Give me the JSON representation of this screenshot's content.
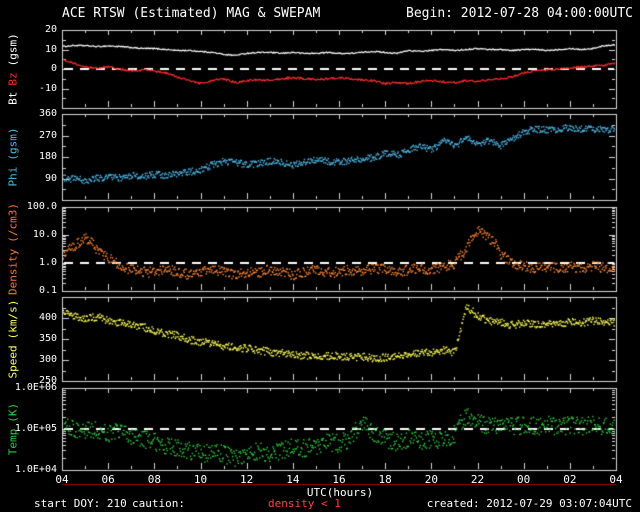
{
  "header": {
    "title": "ACE RTSW (Estimated) MAG & SWEPAM",
    "begin": "Begin: 2012-07-28 04:00:00UTC"
  },
  "footer": {
    "start_doy": "start DOY: 210",
    "caution_label": "caution:",
    "caution_value": "density < 1",
    "created": "created: 2012-07-29 03:07:04UTC"
  },
  "x_axis": {
    "label": "UTC(hours)",
    "ticks": [
      "04",
      "06",
      "08",
      "10",
      "12",
      "14",
      "16",
      "18",
      "20",
      "22",
      "00",
      "02",
      "04"
    ],
    "hours_span": 24
  },
  "colors": {
    "background": "#000000",
    "axis": "#d9d9d9",
    "bt": "#ffffff",
    "bz": "#ff2b2b",
    "phi": "#4db8e8",
    "density": "#ff8833",
    "speed": "#ffff55",
    "temp": "#2ecc40",
    "caution": "#ff4040"
  },
  "chart_data": [
    {
      "name": "mag-bt-bz",
      "type": "line",
      "scale": "linear",
      "yrange": [
        -20,
        20
      ],
      "minor_step": 5,
      "dashed_at": 0,
      "yticks": [
        {
          "v": 20,
          "label": "20"
        },
        {
          "v": 10,
          "label": "10"
        },
        {
          "v": 0,
          "label": "0"
        },
        {
          "v": -10,
          "label": "-10"
        }
      ],
      "label_parts": [
        {
          "text": "Bt",
          "color": "#ffffff"
        },
        {
          "text": "Bz",
          "color": "#ff2b2b"
        },
        {
          "text": "(gsm)",
          "color": "#ffffff"
        }
      ],
      "series": [
        {
          "name": "Bt",
          "color": "#ffffff",
          "style": "line",
          "noise": 0.3,
          "x_step": 0.5,
          "values": [
            11.5,
            12,
            12,
            11.5,
            11.8,
            11.5,
            11,
            10.5,
            10.5,
            10,
            9.5,
            9.5,
            9,
            8.5,
            7.5,
            7,
            8,
            8.5,
            8.5,
            8,
            8.5,
            8,
            8,
            8.5,
            8,
            8,
            8.5,
            9,
            8.5,
            8,
            9.5,
            9,
            9.5,
            10,
            9.5,
            10,
            10.5,
            10,
            10,
            9.5,
            10,
            10,
            9.5,
            10,
            10.5,
            10,
            10.5,
            12,
            12.5
          ]
        },
        {
          "name": "Bz",
          "color": "#ff2b2b",
          "style": "line",
          "noise": 0.5,
          "x_step": 0.5,
          "values": [
            5,
            3,
            1,
            0.5,
            1,
            0,
            -1,
            -0.5,
            -1,
            -2,
            -4,
            -6,
            -7.5,
            -6,
            -5,
            -7,
            -6,
            -5.5,
            -6,
            -5,
            -4.5,
            -5,
            -5.5,
            -5,
            -4.5,
            -5,
            -5.5,
            -6,
            -7.5,
            -7,
            -7.5,
            -6.5,
            -6,
            -6.5,
            -7,
            -6,
            -6.5,
            -5.5,
            -5,
            -4,
            -2,
            -1,
            -0.5,
            0,
            0.5,
            1,
            1.5,
            2,
            3
          ]
        }
      ]
    },
    {
      "name": "phi",
      "type": "scatter",
      "scale": "linear",
      "yrange": [
        0,
        360
      ],
      "minor_step": 45,
      "dashed_at": null,
      "yticks": [
        {
          "v": 360,
          "label": "360"
        },
        {
          "v": 270,
          "label": "270"
        },
        {
          "v": 180,
          "label": "180"
        },
        {
          "v": 90,
          "label": "90"
        }
      ],
      "label_parts": [
        {
          "text": "Phi",
          "color": "#4db8e8"
        },
        {
          "text": "(gsm)",
          "color": "#4db8e8"
        }
      ],
      "series": [
        {
          "name": "Phi",
          "color": "#4db8e8",
          "style": "dots",
          "noise": 14,
          "x_step": 0.5,
          "values": [
            95,
            90,
            85,
            95,
            100,
            95,
            105,
            100,
            110,
            105,
            115,
            120,
            130,
            150,
            165,
            160,
            150,
            155,
            165,
            160,
            150,
            160,
            170,
            165,
            160,
            170,
            175,
            180,
            200,
            190,
            210,
            230,
            210,
            250,
            230,
            260,
            240,
            250,
            230,
            260,
            290,
            300,
            295,
            300,
            305,
            300,
            300,
            295,
            300
          ]
        }
      ]
    },
    {
      "name": "density",
      "type": "scatter",
      "scale": "log",
      "yrange": [
        0.1,
        100
      ],
      "dashed_at": 1,
      "yticks": [
        {
          "v": 100,
          "label": "100.0"
        },
        {
          "v": 10,
          "label": "10.0"
        },
        {
          "v": 1,
          "label": "1.0"
        },
        {
          "v": 0.1,
          "label": "0.1"
        }
      ],
      "label_parts": [
        {
          "text": "Density",
          "color": "#ff7033"
        },
        {
          "text": "(/cm3)",
          "color": "#ff7033"
        }
      ],
      "series": [
        {
          "name": "Density",
          "color": "#ff8833",
          "style": "dots",
          "noise": 0.18,
          "x_step": 0.5,
          "values": [
            2,
            4,
            8,
            3,
            1.5,
            0.8,
            0.6,
            0.5,
            0.5,
            0.6,
            0.5,
            0.4,
            0.5,
            0.6,
            0.5,
            0.4,
            0.5,
            0.5,
            0.6,
            0.5,
            0.4,
            0.5,
            0.6,
            0.5,
            0.5,
            0.6,
            0.5,
            0.7,
            0.6,
            0.5,
            0.6,
            0.7,
            0.6,
            0.8,
            1.0,
            3,
            15,
            8,
            2,
            1,
            0.8,
            0.7,
            0.8,
            0.7,
            0.8,
            0.7,
            0.8,
            0.7,
            0.8
          ]
        }
      ]
    },
    {
      "name": "speed",
      "type": "scatter",
      "scale": "linear",
      "yrange": [
        250,
        450
      ],
      "minor_step": 25,
      "dashed_at": null,
      "yticks": [
        {
          "v": 400,
          "label": "400"
        },
        {
          "v": 350,
          "label": "350"
        },
        {
          "v": 300,
          "label": "300"
        },
        {
          "v": 250,
          "label": "250"
        }
      ],
      "label_parts": [
        {
          "text": "Speed",
          "color": "#ffff55"
        },
        {
          "text": "(km/s)",
          "color": "#ffff55"
        }
      ],
      "series": [
        {
          "name": "Speed",
          "color": "#ffff55",
          "style": "dots",
          "noise": 9,
          "x_step": 0.5,
          "values": [
            415,
            405,
            400,
            405,
            395,
            390,
            385,
            380,
            370,
            365,
            360,
            350,
            345,
            340,
            335,
            330,
            330,
            325,
            320,
            318,
            315,
            312,
            310,
            312,
            310,
            308,
            310,
            305,
            308,
            310,
            315,
            320,
            318,
            325,
            320,
            430,
            405,
            395,
            390,
            385,
            390,
            385,
            390,
            388,
            392,
            390,
            395,
            390,
            392
          ]
        }
      ]
    },
    {
      "name": "temp",
      "type": "scatter",
      "scale": "log",
      "yrange": [
        10000,
        1000000
      ],
      "dashed_at": 100000,
      "yticks": [
        {
          "v": 1000000,
          "label": "1.0E+06"
        },
        {
          "v": 100000,
          "label": "1.0E+05"
        },
        {
          "v": 10000,
          "label": "1.0E+04"
        }
      ],
      "label_parts": [
        {
          "text": "Temp",
          "color": "#2ecc40"
        },
        {
          "text": "(K)",
          "color": "#2ecc40"
        }
      ],
      "series": [
        {
          "name": "Temp",
          "color": "#2ecc40",
          "style": "dots",
          "noise": 0.22,
          "x_step": 0.5,
          "values": [
            120000,
            100000,
            90000,
            100000,
            80000,
            90000,
            70000,
            60000,
            50000,
            40000,
            35000,
            30000,
            25000,
            30000,
            25000,
            20000,
            25000,
            30000,
            25000,
            30000,
            40000,
            35000,
            40000,
            50000,
            45000,
            60000,
            150000,
            80000,
            60000,
            50000,
            60000,
            50000,
            60000,
            50000,
            80000,
            200000,
            150000,
            120000,
            130000,
            120000,
            130000,
            120000,
            130000,
            120000,
            130000,
            120000,
            130000,
            120000,
            130000
          ]
        }
      ]
    }
  ]
}
